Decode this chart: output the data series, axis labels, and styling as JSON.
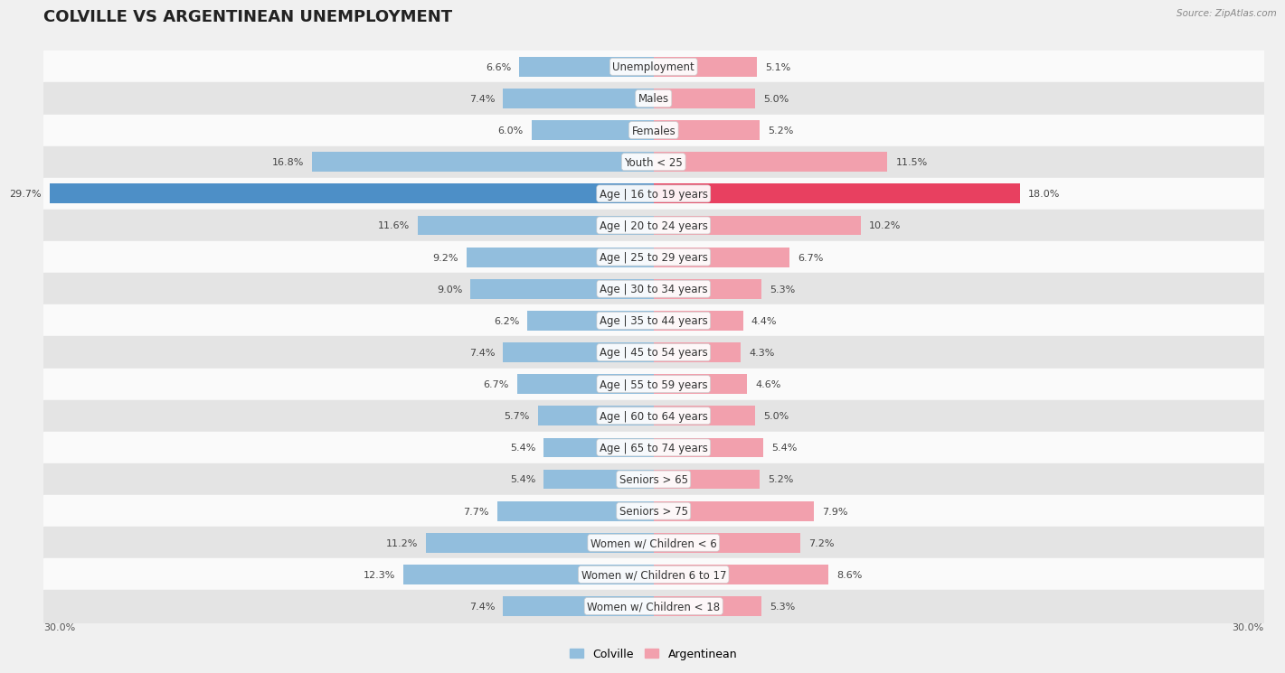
{
  "title": "COLVILLE VS ARGENTINEAN UNEMPLOYMENT",
  "source": "Source: ZipAtlas.com",
  "categories": [
    "Unemployment",
    "Males",
    "Females",
    "Youth < 25",
    "Age | 16 to 19 years",
    "Age | 20 to 24 years",
    "Age | 25 to 29 years",
    "Age | 30 to 34 years",
    "Age | 35 to 44 years",
    "Age | 45 to 54 years",
    "Age | 55 to 59 years",
    "Age | 60 to 64 years",
    "Age | 65 to 74 years",
    "Seniors > 65",
    "Seniors > 75",
    "Women w/ Children < 6",
    "Women w/ Children 6 to 17",
    "Women w/ Children < 18"
  ],
  "colville_values": [
    6.6,
    7.4,
    6.0,
    16.8,
    29.7,
    11.6,
    9.2,
    9.0,
    6.2,
    7.4,
    6.7,
    5.7,
    5.4,
    5.4,
    7.7,
    11.2,
    12.3,
    7.4
  ],
  "argentinean_values": [
    5.1,
    5.0,
    5.2,
    11.5,
    18.0,
    10.2,
    6.7,
    5.3,
    4.4,
    4.3,
    4.6,
    5.0,
    5.4,
    5.2,
    7.9,
    7.2,
    8.6,
    5.3
  ],
  "colville_color": "#92bedd",
  "argentinean_color": "#f2a0ad",
  "colville_highlight_color": "#4d8fc7",
  "argentinean_highlight_color": "#e84060",
  "highlight_row": 4,
  "background_color": "#f0f0f0",
  "row_color_light": "#fafafa",
  "row_color_dark": "#e4e4e4",
  "max_value": 30.0,
  "axis_label_left": "30.0%",
  "axis_label_right": "30.0%",
  "legend_colville": "Colville",
  "legend_argentinean": "Argentinean",
  "title_fontsize": 13,
  "label_fontsize": 8.5,
  "value_fontsize": 8
}
